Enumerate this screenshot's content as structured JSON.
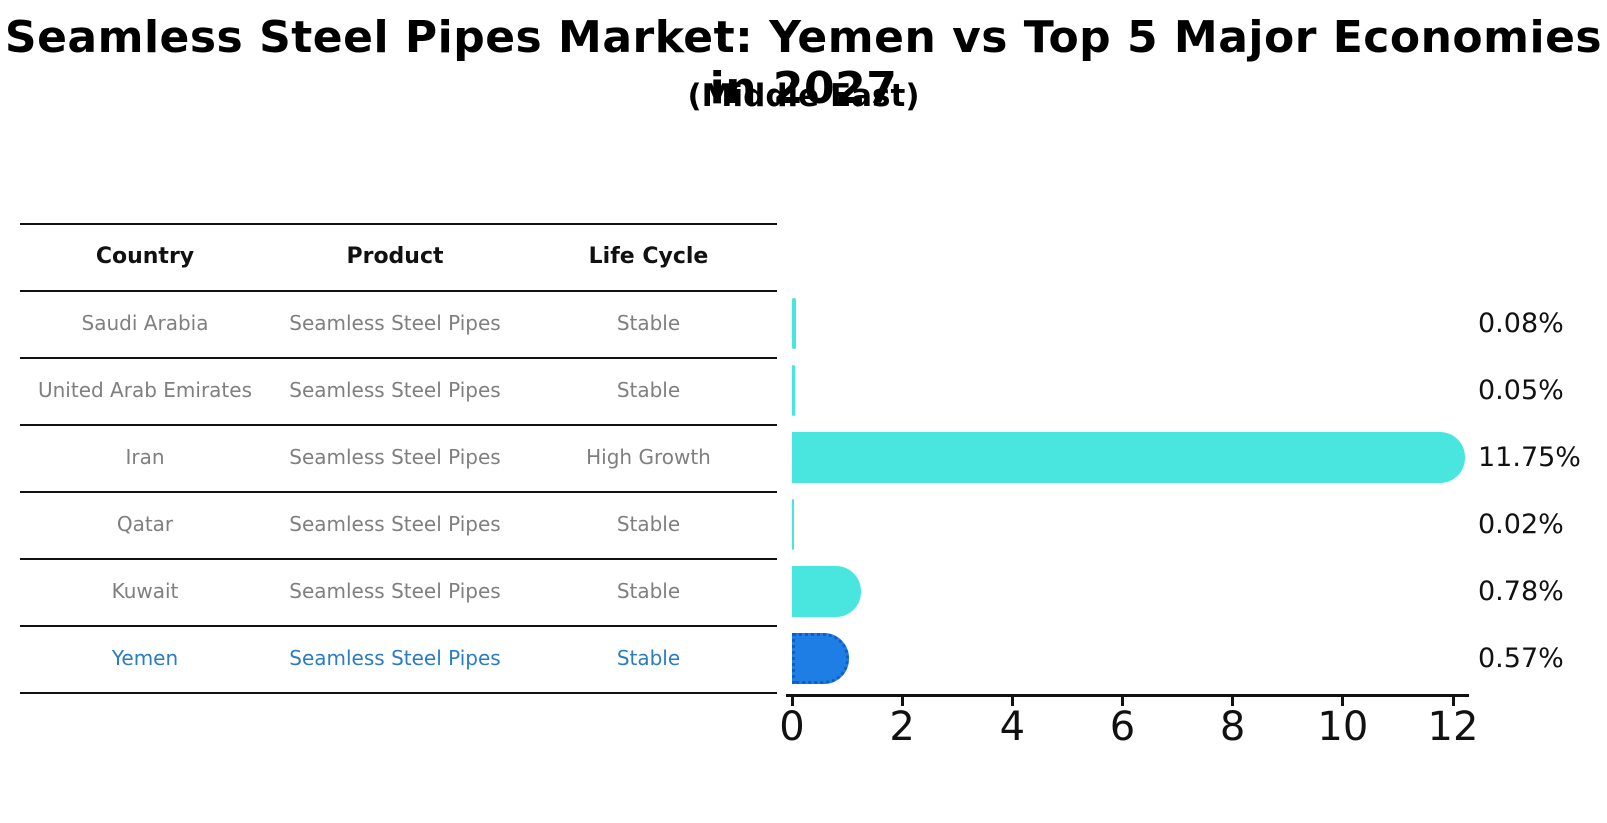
{
  "title": "Seamless Steel Pipes Market: Yemen vs Top 5 Major Economies in 2027",
  "subtitle": "(Middle East)",
  "table": {
    "headers": [
      "Country",
      "Product",
      "Life Cycle"
    ],
    "rows": [
      {
        "country": "Saudi Arabia",
        "product": "Seamless Steel Pipes",
        "life_cycle": "Stable",
        "highlight": false
      },
      {
        "country": "United Arab Emirates",
        "product": "Seamless Steel Pipes",
        "life_cycle": "Stable",
        "highlight": false
      },
      {
        "country": "Iran",
        "product": "Seamless Steel Pipes",
        "life_cycle": "High Growth",
        "highlight": false
      },
      {
        "country": "Qatar",
        "product": "Seamless Steel Pipes",
        "life_cycle": "Stable",
        "highlight": false
      },
      {
        "country": "Kuwait",
        "product": "Seamless Steel Pipes",
        "life_cycle": "Stable",
        "highlight": false
      },
      {
        "country": "Yemen",
        "product": "Seamless Steel Pipes",
        "life_cycle": "Stable",
        "highlight": true
      }
    ]
  },
  "chart_data": {
    "type": "bar",
    "orientation": "horizontal",
    "categories": [
      "Saudi Arabia",
      "United Arab Emirates",
      "Iran",
      "Qatar",
      "Kuwait",
      "Yemen"
    ],
    "values": [
      0.08,
      0.05,
      11.75,
      0.02,
      0.78,
      0.57
    ],
    "value_labels": [
      "0.08%",
      "0.05%",
      "11.75%",
      "0.02%",
      "0.78%",
      "0.57%"
    ],
    "highlight_index": 5,
    "title": "Seamless Steel Pipes Market: Yemen vs Top 5 Major Economies in 2027 (Middle East)",
    "xlabel": "",
    "ylabel": "",
    "xlim": [
      0,
      12.3
    ],
    "x_ticks": [
      0,
      2,
      4,
      6,
      8,
      10,
      12
    ],
    "grid": false,
    "legend": false,
    "colors": {
      "bar_default": "#49e6df",
      "bar_highlight": "#1e7ee5",
      "bar_highlight_edge": "#0e5fc0",
      "row_text": "#7f7f7f",
      "highlight_text": "#2a7dc0",
      "axis_text": "#111111"
    }
  }
}
